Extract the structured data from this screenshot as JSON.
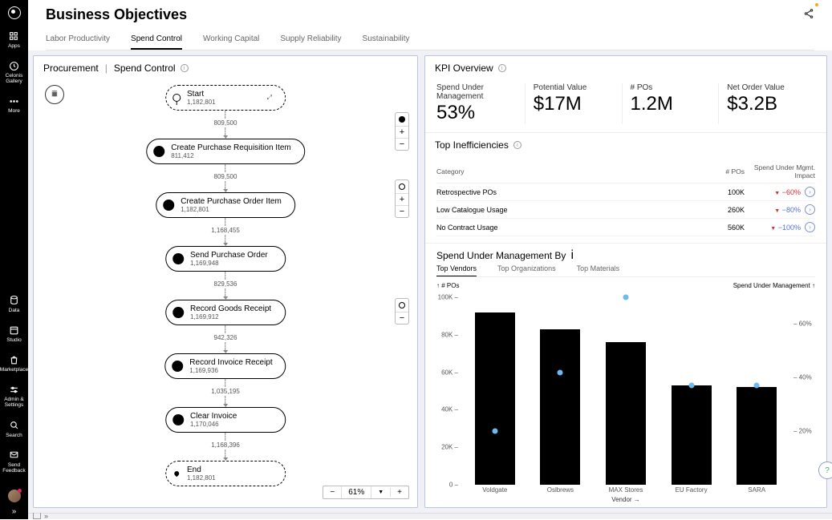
{
  "page": {
    "title": "Business Objectives"
  },
  "sidebar": {
    "top": [
      {
        "icon": "grid",
        "label": "Apps"
      },
      {
        "icon": "clock",
        "label": "Celonis Gallery"
      },
      {
        "icon": "dots",
        "label": "More"
      }
    ],
    "bottom": [
      {
        "icon": "db",
        "label": "Data"
      },
      {
        "icon": "studio",
        "label": "Studio"
      },
      {
        "icon": "bag",
        "label": "Marketplace"
      },
      {
        "icon": "sliders",
        "label": "Admin & Settings"
      },
      {
        "icon": "search",
        "label": "Search"
      },
      {
        "icon": "mail",
        "label": "Send Feedback"
      }
    ]
  },
  "tabs": [
    "Labor Productivity",
    "Spend Control",
    "Working Capital",
    "Supply Reliability",
    "Sustainability"
  ],
  "active_tab": "Spend Control",
  "left": {
    "crumb1": "Procurement",
    "crumb2": "Spend Control",
    "nodes": [
      {
        "label": "Start",
        "count": "1,182,801",
        "type": "start"
      },
      {
        "label": "Create Purchase Requisition Item",
        "count": "811,412",
        "type": "step"
      },
      {
        "label": "Create Purchase Order Item",
        "count": "1,182,801",
        "type": "step"
      },
      {
        "label": "Send Purchase Order",
        "count": "1,169,948",
        "type": "step"
      },
      {
        "label": "Record Goods Receipt",
        "count": "1,169,912",
        "type": "step"
      },
      {
        "label": "Record Invoice Receipt",
        "count": "1,169,936",
        "type": "step"
      },
      {
        "label": "Clear Invoice",
        "count": "1,170,046",
        "type": "step"
      },
      {
        "label": "End",
        "count": "1,182,801",
        "type": "end"
      }
    ],
    "edges": [
      "809,500",
      "809,500",
      "1,168,455",
      "829,536",
      "942,326",
      "1,035,195",
      "1,168,396"
    ],
    "zoom": "61%"
  },
  "right": {
    "kpi_title": "KPI Overview",
    "kpis": [
      {
        "label": "Spend Under Management",
        "value": "53%"
      },
      {
        "label": "Potential Value",
        "value": "$17M"
      },
      {
        "label": "# POs",
        "value": "1.2M"
      },
      {
        "label": "Net Order Value",
        "value": "$3.2B"
      }
    ],
    "ineff_title": "Top Inefficiencies",
    "ineff_cols": {
      "cat": "Category",
      "pos": "# POs",
      "impact": "Spend Under Mgmt. Impact"
    },
    "ineff_rows": [
      {
        "cat": "Retrospective POs",
        "pos": "100K",
        "impact": "−60%",
        "cls": "neg60"
      },
      {
        "cat": "Low Catalogue Usage",
        "pos": "260K",
        "impact": "−80%",
        "cls": "neg80"
      },
      {
        "cat": "No Contract Usage",
        "pos": "560K",
        "impact": "−100%",
        "cls": "neg100"
      }
    ],
    "chart_title": "Spend Under Management By",
    "chart_tabs": [
      "Top Vendors",
      "Top Organizations",
      "Top Materials"
    ],
    "chart_active": "Top Vendors",
    "chart": {
      "type": "bar+scatter",
      "y1_label": "# POs",
      "y2_label": "Spend Under Management",
      "y1_ticks": [
        0,
        20,
        40,
        60,
        80,
        100
      ],
      "y1_tick_suffix": "K",
      "y1_max": 100,
      "y2_ticks": [
        20,
        40,
        60
      ],
      "y2_tick_suffix": "%",
      "y2_max": 70,
      "x_title": "Vendor →",
      "categories": [
        "Voldgate",
        "Oslbrews",
        "MAX Stores",
        "EU Factory",
        "SARA"
      ],
      "bar_values": [
        92,
        83,
        76,
        53,
        52
      ],
      "bar_color": "#000000",
      "scatter_values": [
        20,
        42,
        70,
        37,
        37
      ],
      "scatter_color": "#6db9f2"
    }
  }
}
